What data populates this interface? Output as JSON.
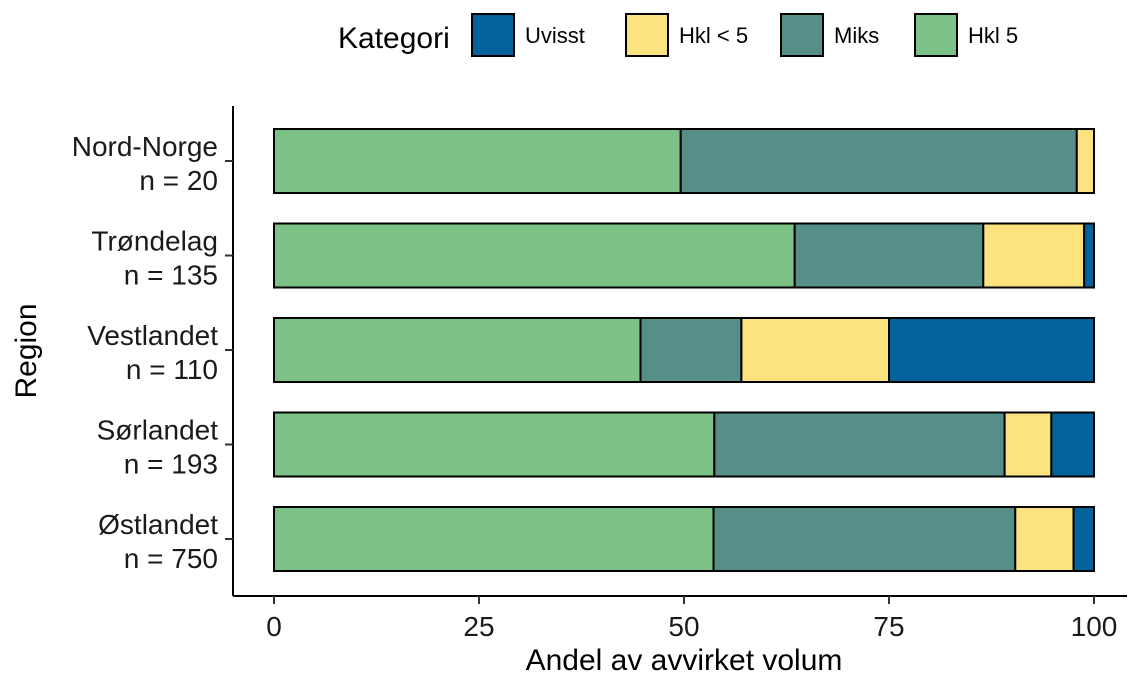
{
  "chart_data": {
    "type": "bar",
    "orientation": "horizontal",
    "stacked": true,
    "xlabel": "Andel av avvirket volum",
    "ylabel": "Region",
    "xlim": [
      0,
      100
    ],
    "xticks": [
      0,
      25,
      50,
      75,
      100
    ],
    "legend": {
      "title": "Kategori",
      "position": "top"
    },
    "categories": [
      [
        "Nord-Norge",
        "n = 20"
      ],
      [
        "Trøndelag",
        "n = 135"
      ],
      [
        "Vestlandet",
        "n = 110"
      ],
      [
        "Sørlandet",
        "n = 193"
      ],
      [
        "Østlandet",
        "n = 750"
      ]
    ],
    "series": [
      {
        "name": "Hkl 5",
        "color": "#7cc186",
        "values": [
          49.6,
          63.5,
          44.7,
          53.7,
          53.6
        ]
      },
      {
        "name": "Miks",
        "color": "#558f87",
        "values": [
          48.3,
          23.0,
          12.3,
          35.4,
          36.8
        ]
      },
      {
        "name": "Hkl < 5",
        "color": "#fce380",
        "values": [
          2.1,
          12.3,
          18.0,
          5.7,
          7.1
        ]
      },
      {
        "name": "Uvisst",
        "color": "#03619b",
        "values": [
          0.0,
          1.2,
          25.0,
          5.2,
          2.5
        ]
      }
    ],
    "legend_order": [
      "Uvisst",
      "Hkl < 5",
      "Miks",
      "Hkl 5"
    ],
    "grid": false
  }
}
